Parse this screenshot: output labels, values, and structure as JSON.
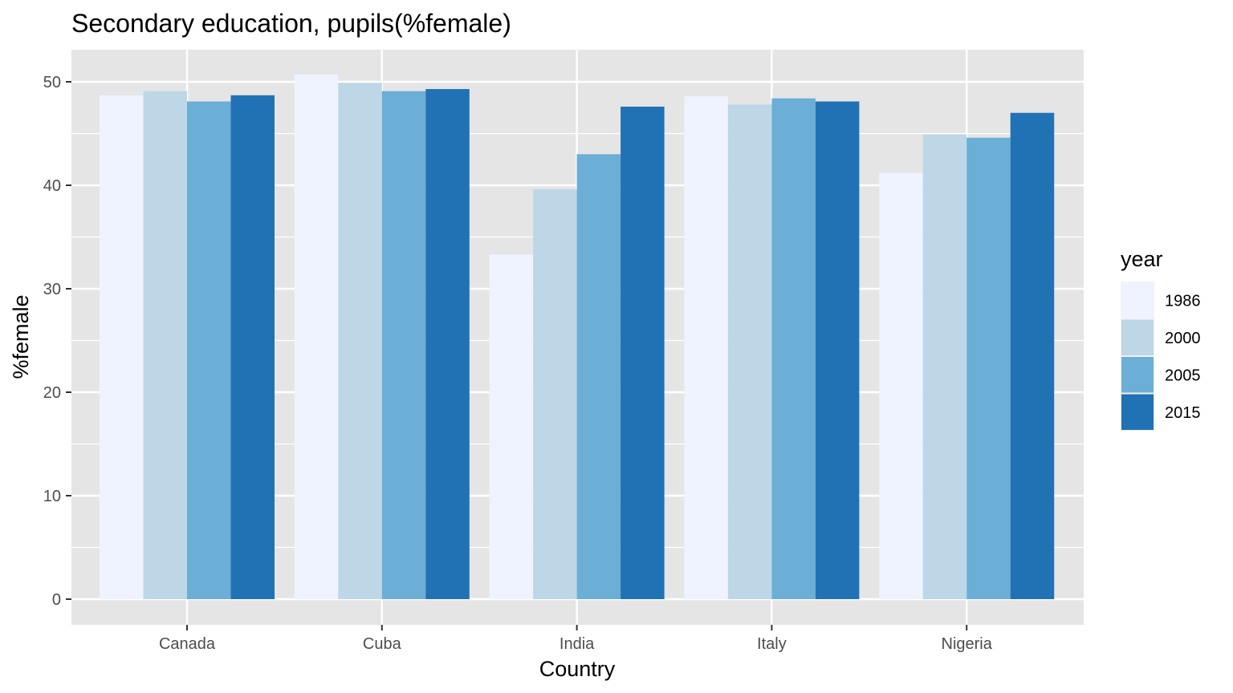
{
  "chart_data": {
    "type": "bar",
    "title": "Secondary education, pupils(%female)",
    "xlabel": "Country",
    "ylabel": "%female",
    "categories": [
      "Canada",
      "Cuba",
      "India",
      "Italy",
      "Nigeria"
    ],
    "series": [
      {
        "name": "1986",
        "color": "#eff3ff",
        "values": [
          48.7,
          50.7,
          33.3,
          48.6,
          41.2
        ]
      },
      {
        "name": "2000",
        "color": "#bdd7e7",
        "values": [
          49.1,
          49.9,
          39.6,
          47.8,
          44.9
        ]
      },
      {
        "name": "2005",
        "color": "#6baed6",
        "values": [
          48.1,
          49.1,
          43.0,
          48.4,
          44.6
        ]
      },
      {
        "name": "2015",
        "color": "#2171b5",
        "values": [
          48.7,
          49.3,
          47.6,
          48.1,
          47.0
        ]
      }
    ],
    "ylim": [
      0,
      53
    ],
    "yticks": [
      0,
      10,
      20,
      30,
      40,
      50
    ],
    "grid": true,
    "legend": {
      "title": "year",
      "placement": "right"
    },
    "colors": {
      "panel_background": "#e5e5e5",
      "grid": "#ffffff",
      "tick_text": "#4d4d4d",
      "tick_mark": "#333333"
    }
  }
}
